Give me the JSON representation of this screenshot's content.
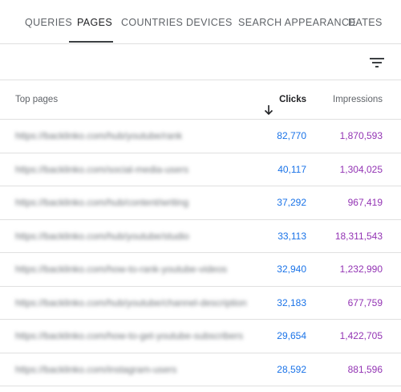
{
  "tabs": [
    {
      "label": "QUERIES",
      "active": false
    },
    {
      "label": "PAGES",
      "active": true
    },
    {
      "label": "COUNTRIES",
      "active": false
    },
    {
      "label": "DEVICES",
      "active": false
    },
    {
      "label": "SEARCH APPEARANCE",
      "active": false
    },
    {
      "label": "DATES",
      "active": false
    }
  ],
  "toolbar": {
    "filter_icon": "filter-icon"
  },
  "table": {
    "headers": {
      "page": "Top pages",
      "clicks": "Clicks",
      "impressions": "Impressions",
      "sort_icon": "arrow-down-icon"
    },
    "rows": [
      {
        "url": "https://backlinko.com/hub/youtube/rank",
        "clicks": "82,770",
        "impressions": "1,870,593"
      },
      {
        "url": "https://backlinko.com/social-media-users",
        "clicks": "40,117",
        "impressions": "1,304,025"
      },
      {
        "url": "https://backlinko.com/hub/content/writing",
        "clicks": "37,292",
        "impressions": "967,419"
      },
      {
        "url": "https://backlinko.com/hub/youtube/studio",
        "clicks": "33,113",
        "impressions": "18,311,543"
      },
      {
        "url": "https://backlinko.com/how-to-rank-youtube-videos",
        "clicks": "32,940",
        "impressions": "1,232,990"
      },
      {
        "url": "https://backlinko.com/hub/youtube/channel-description",
        "clicks": "32,183",
        "impressions": "677,759"
      },
      {
        "url": "https://backlinko.com/how-to-get-youtube-subscribers",
        "clicks": "29,654",
        "impressions": "1,422,705"
      },
      {
        "url": "https://backlinko.com/instagram-users",
        "clicks": "28,592",
        "impressions": "881,596"
      }
    ]
  },
  "colors": {
    "clicks": "#1a73e8",
    "impressions": "#9334b4",
    "divider": "#e0e0e0"
  }
}
